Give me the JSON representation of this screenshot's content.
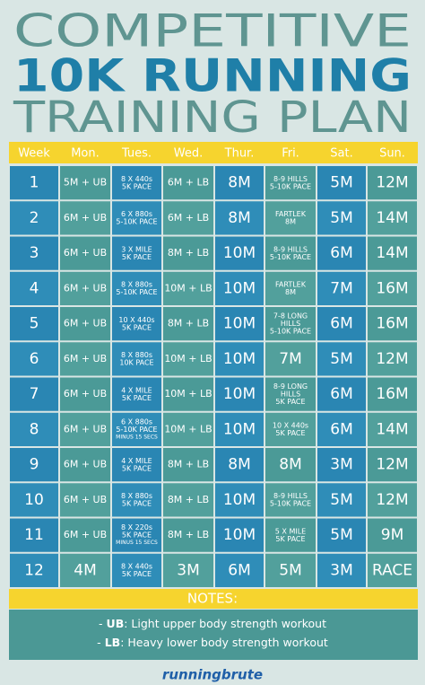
{
  "header": {
    "line1": "COMPETITIVE",
    "line2": "10K RUNNING",
    "line3": "TRAINING PLAN"
  },
  "table": {
    "columns": [
      "Week",
      "Mon.",
      "Tues.",
      "Wed.",
      "Thur.",
      "Fri.",
      "Sat.",
      "Sun."
    ],
    "rows": [
      [
        "1",
        "5M + UB",
        [
          "8 X 440s",
          "5K PACE"
        ],
        "6M + LB",
        "8M",
        [
          "8-9 HILLS",
          "5-10K PACE"
        ],
        "5M",
        "12M"
      ],
      [
        "2",
        "6M + UB",
        [
          "6 X 880s",
          "5-10K PACE"
        ],
        "6M + LB",
        "8M",
        [
          "FARTLEK",
          "8M"
        ],
        "5M",
        "14M"
      ],
      [
        "3",
        "6M + UB",
        [
          "3 X MILE",
          "5K PACE"
        ],
        "8M + LB",
        "10M",
        [
          "8-9 HILLS",
          "5-10K PACE"
        ],
        "6M",
        "14M"
      ],
      [
        "4",
        "6M + UB",
        [
          "8 X 880s",
          "5-10K PACE"
        ],
        "10M + LB",
        "10M",
        [
          "FARTLEK",
          "8M"
        ],
        "7M",
        "16M"
      ],
      [
        "5",
        "6M + UB",
        [
          "10 X 440s",
          "5K PACE"
        ],
        "8M + LB",
        "10M",
        [
          "7-8 LONG",
          "HILLS",
          "5-10K PACE"
        ],
        "6M",
        "16M"
      ],
      [
        "6",
        "6M + UB",
        [
          "8 X 880s",
          "10K PACE"
        ],
        "10M + LB",
        "10M",
        "7M",
        "5M",
        "12M"
      ],
      [
        "7",
        "6M + UB",
        [
          "4 X MILE",
          "5K PACE"
        ],
        "10M + LB",
        "10M",
        [
          "8-9 LONG",
          "HILLS",
          "5K PACE"
        ],
        "6M",
        "16M"
      ],
      [
        "8",
        "6M + UB",
        [
          "6 X 880s",
          "5-10K PACE",
          "MINUS 15 SECS"
        ],
        "10M + LB",
        "10M",
        [
          "10 X 440s",
          "5K PACE"
        ],
        "6M",
        "14M"
      ],
      [
        "9",
        "6M + UB",
        [
          "4 X MILE",
          "5K PACE"
        ],
        "8M + LB",
        "8M",
        "8M",
        "3M",
        "12M"
      ],
      [
        "10",
        "6M + UB",
        [
          "8 X 880s",
          "5K PACE"
        ],
        "8M + LB",
        "10M",
        [
          "8-9 HILLS",
          "5-10K PACE"
        ],
        "5M",
        "12M"
      ],
      [
        "11",
        "6M + UB",
        [
          "8 X 220s",
          "5K PACE",
          "MINUS 15 SECS"
        ],
        "8M + LB",
        "10M",
        [
          "5 X MILE",
          "5K PACE"
        ],
        "5M",
        "9M"
      ],
      [
        "12",
        "4M",
        [
          "8 X 440s",
          "5K PACE"
        ],
        "3M",
        "6M",
        "5M",
        "3M",
        "RACE"
      ]
    ]
  },
  "notes": {
    "title": "NOTES:",
    "items": [
      {
        "prefix": "-",
        "term": "UB",
        "text": ": Light upper body strength workout"
      },
      {
        "prefix": "-",
        "term": "LB",
        "text": ": Heavy lower body strength workout"
      }
    ]
  },
  "footer": {
    "logo": "runningbrute"
  }
}
